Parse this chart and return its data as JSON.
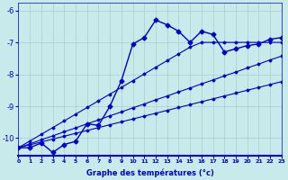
{
  "xlabel": "Graphe des températures (°c)",
  "bg_color": "#c8eaea",
  "line_color": "#0000cc",
  "grid_color": "#aacccc",
  "x_ticks": [
    0,
    1,
    2,
    3,
    4,
    5,
    6,
    7,
    8,
    9,
    10,
    11,
    12,
    13,
    14,
    15,
    16,
    17,
    18,
    19,
    20,
    21,
    22,
    23
  ],
  "y_ticks": [
    -6,
    -7,
    -8,
    -9,
    -10
  ],
  "xlim": [
    0,
    23
  ],
  "ylim": [
    -10.55,
    -5.75
  ],
  "main_x": [
    0,
    1,
    2,
    3,
    4,
    5,
    6,
    7,
    8,
    9,
    10,
    11,
    12,
    13,
    14,
    15,
    16,
    17,
    18,
    19,
    20,
    21,
    22,
    23
  ],
  "main_y": [
    -10.3,
    -10.3,
    -10.15,
    -10.45,
    -10.2,
    -10.1,
    -9.55,
    -9.6,
    -9.0,
    -8.2,
    -7.05,
    -6.85,
    -6.3,
    -6.45,
    -6.65,
    -7.0,
    -6.65,
    -6.75,
    -7.3,
    -7.2,
    -7.1,
    -7.05,
    -6.9,
    -6.85
  ],
  "line1_x": [
    0,
    23
  ],
  "line1_y": [
    -10.3,
    -7.05
  ],
  "line2_x": [
    0,
    23
  ],
  "line2_y": [
    -10.3,
    -6.9
  ],
  "line3_x": [
    0,
    23
  ],
  "line3_y": [
    -10.3,
    -7.2
  ],
  "trend_x": [
    0,
    1,
    2,
    3,
    4,
    5,
    6,
    7,
    8,
    9,
    10,
    11,
    12,
    13,
    14,
    15,
    16,
    17,
    18,
    19,
    20,
    21,
    22,
    23
  ],
  "trend1_y": [
    -10.3,
    -10.18,
    -10.05,
    -9.93,
    -9.8,
    -9.68,
    -9.55,
    -9.43,
    -9.3,
    -9.18,
    -9.05,
    -8.93,
    -8.8,
    -8.68,
    -8.55,
    -8.43,
    -8.3,
    -8.18,
    -8.05,
    -7.93,
    -7.8,
    -7.68,
    -7.55,
    -7.43
  ],
  "trend2_y": [
    -10.3,
    -10.21,
    -10.12,
    -10.03,
    -9.94,
    -9.85,
    -9.76,
    -9.67,
    -9.58,
    -9.49,
    -9.4,
    -9.31,
    -9.22,
    -9.13,
    -9.04,
    -8.95,
    -8.86,
    -8.77,
    -8.68,
    -8.59,
    -8.5,
    -8.41,
    -8.32,
    -8.23
  ],
  "trend3_y": [
    -10.3,
    -10.09,
    -9.88,
    -9.67,
    -9.46,
    -9.25,
    -9.04,
    -8.83,
    -8.62,
    -8.41,
    -8.2,
    -7.99,
    -7.78,
    -7.57,
    -7.36,
    -7.15,
    -7.0,
    -7.0,
    -7.0,
    -7.0,
    -7.0,
    -7.0,
    -7.0,
    -7.0
  ]
}
